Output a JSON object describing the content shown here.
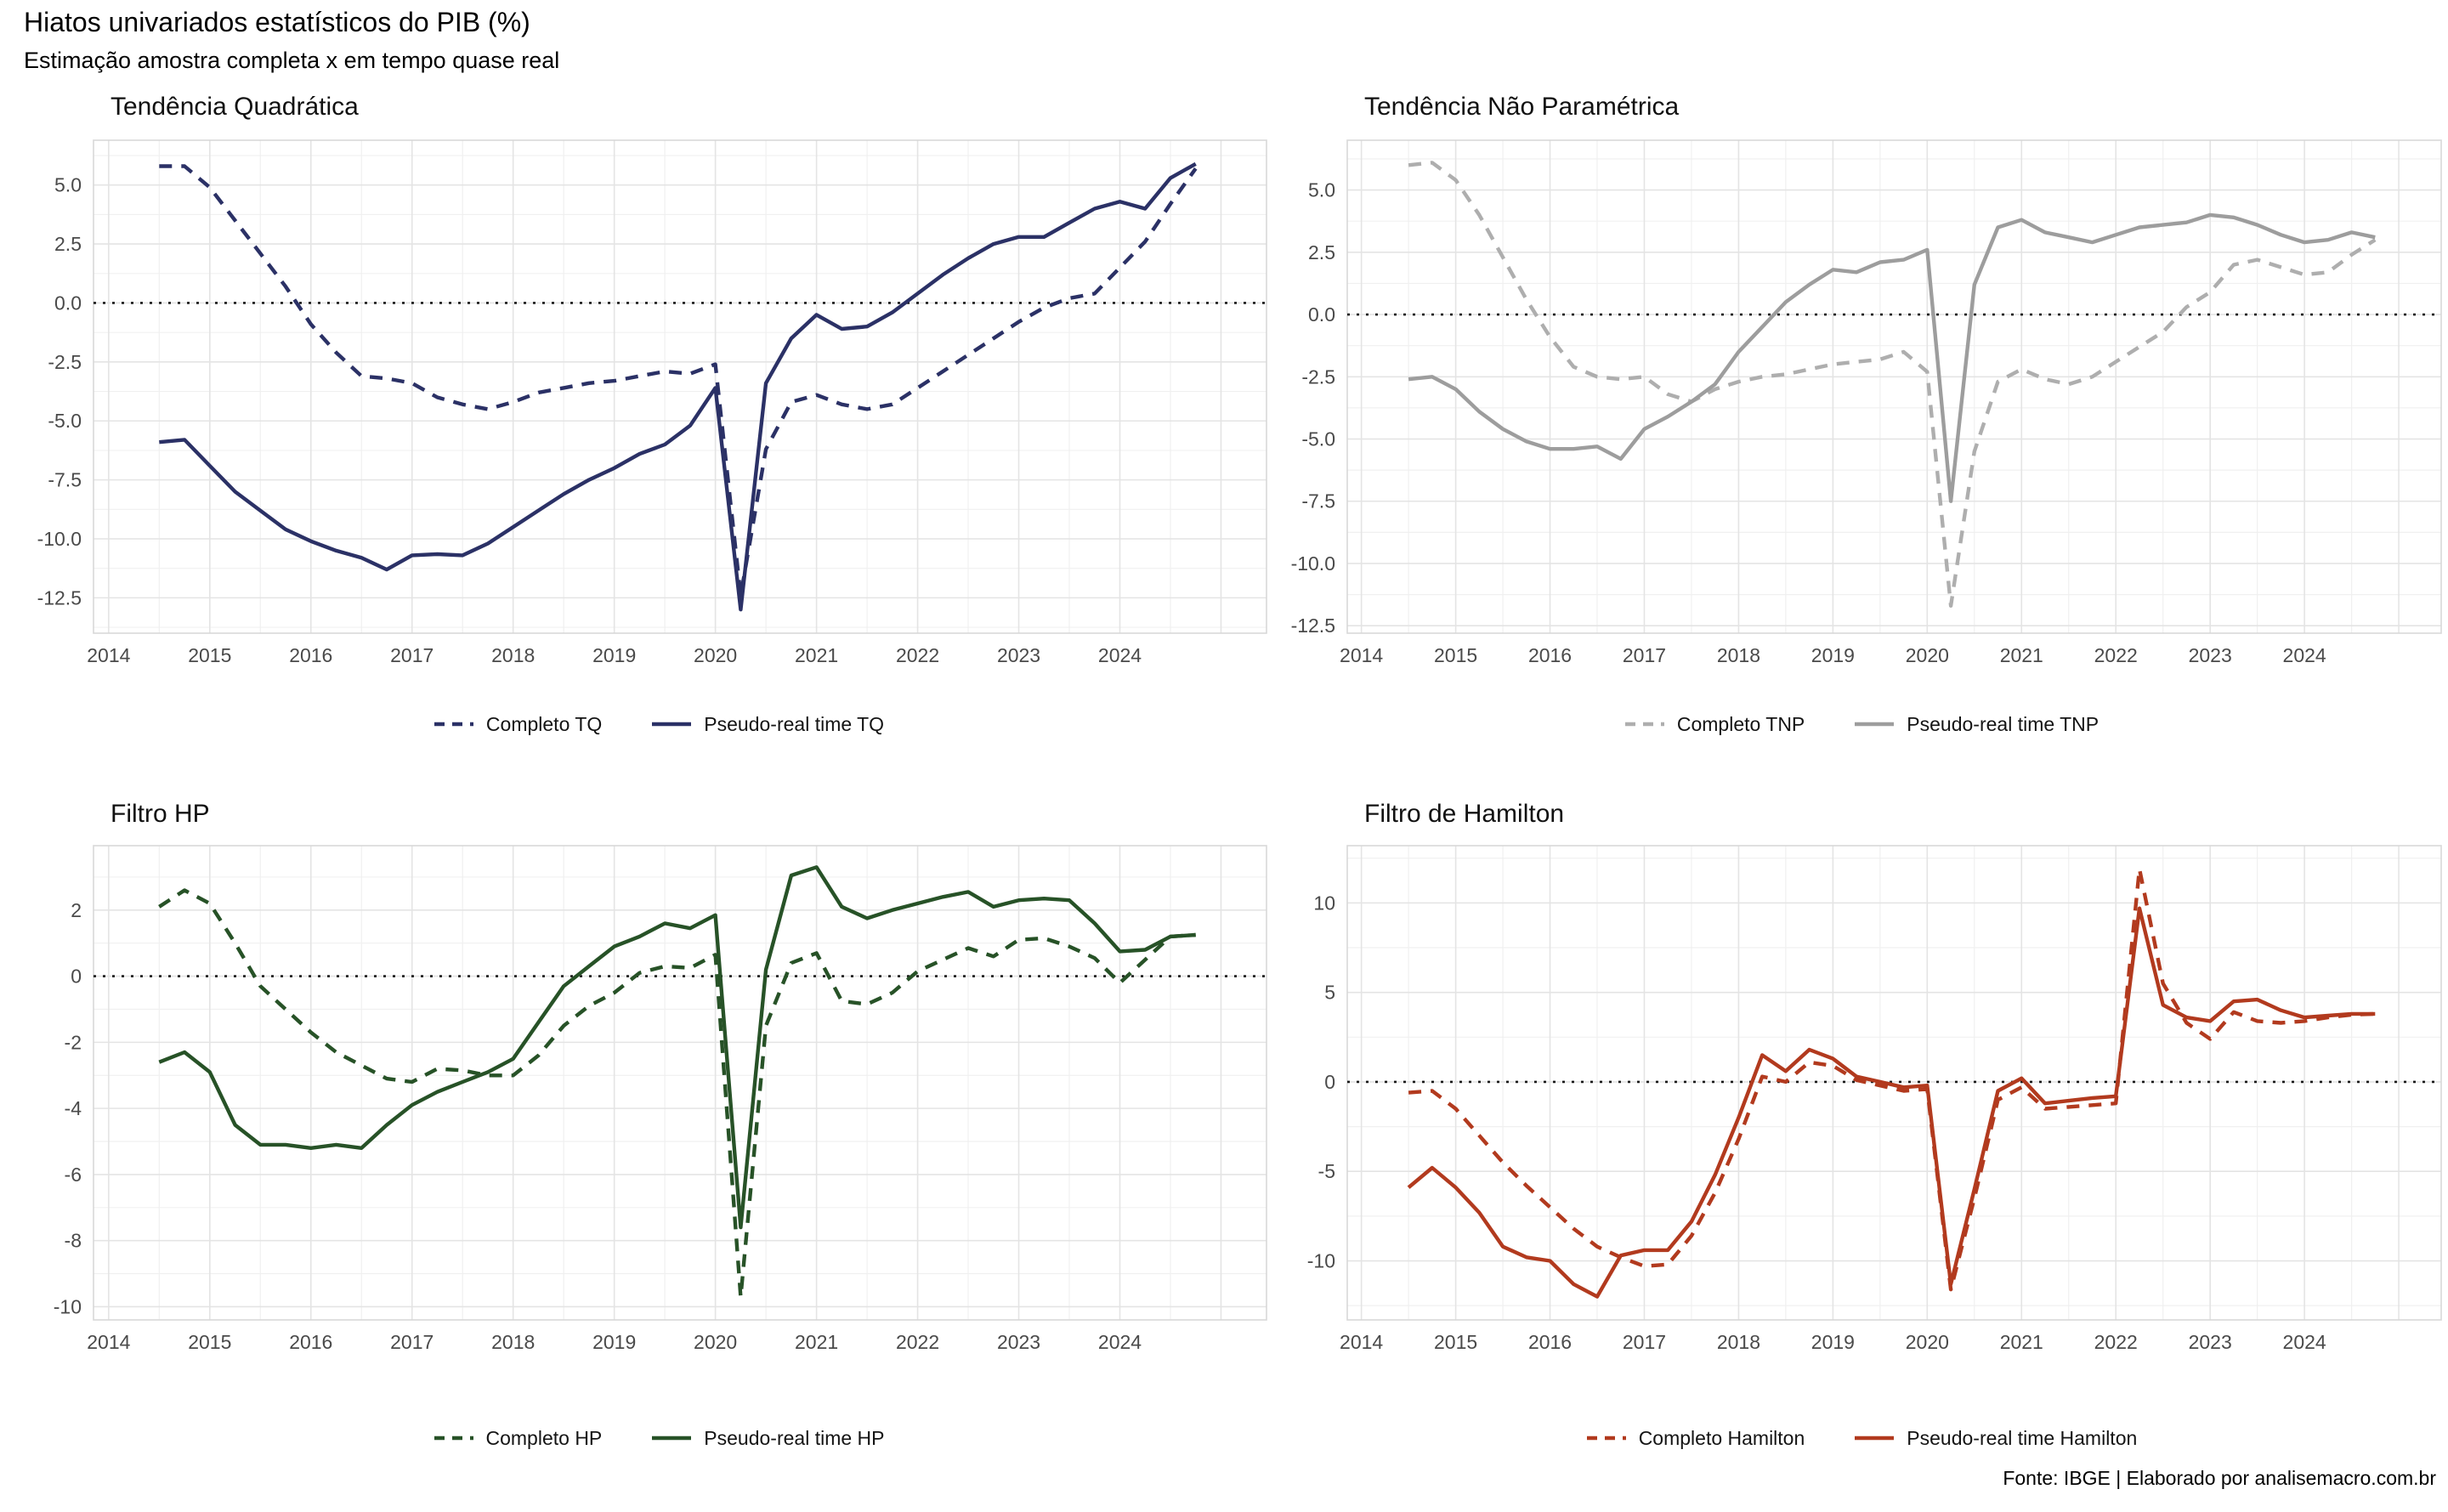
{
  "header": {
    "title": "Hiatos univariados estatísticos do PIB (%)",
    "subtitle": "Estimação amostra completa x em tempo quase real"
  },
  "footer": {
    "text": "Fonte: IBGE | Elaborado por analisemacro.com.br"
  },
  "chart_data": [
    {
      "type": "line",
      "title": "Tendência Quadrática",
      "x_start": 2014.5,
      "x_step": 0.25,
      "xlim": [
        2013.85,
        2025.45
      ],
      "ylim": [
        -14.0,
        6.9
      ],
      "grid": "on",
      "legend_position": "bottom",
      "zero_line": true,
      "xticks": {
        "values": [
          2014,
          2015,
          2016,
          2017,
          2018,
          2019,
          2020,
          2021,
          2022,
          2023,
          2024,
          2025
        ],
        "labels": [
          "2014",
          "2015",
          "2016",
          "2017",
          "2018",
          "2019",
          "2020",
          "2021",
          "2022",
          "2023",
          "2024",
          ""
        ]
      },
      "x_minor": [
        2014.5,
        2015.5,
        2016.5,
        2017.5,
        2018.5,
        2019.5,
        2020.5,
        2021.5,
        2022.5,
        2023.5,
        2024.5
      ],
      "yticks": {
        "values": [
          5.0,
          2.5,
          0.0,
          -2.5,
          -5.0,
          -7.5,
          -10.0,
          -12.5
        ],
        "labels": [
          "5.0",
          "2.5",
          "0.0",
          "-2.5",
          "-5.0",
          "-7.5",
          "-10.0",
          "-12.5"
        ]
      },
      "y_minor": [
        6.25,
        3.75,
        1.25,
        -1.25,
        -3.75,
        -6.25,
        -8.75,
        -11.25,
        -13.75
      ],
      "series": [
        {
          "name": "Completo TQ",
          "style": "dashed",
          "color": "#2b3166",
          "values": [
            5.8,
            5.8,
            4.9,
            3.5,
            2.1,
            0.7,
            -0.9,
            -2.1,
            -3.1,
            -3.2,
            -3.4,
            -4.0,
            -4.3,
            -4.5,
            -4.2,
            -3.8,
            -3.6,
            -3.4,
            -3.3,
            -3.1,
            -2.9,
            -3.0,
            -2.6,
            -12.4,
            -6.2,
            -4.2,
            -3.9,
            -4.3,
            -4.5,
            -4.3,
            -3.6,
            -2.9,
            -2.2,
            -1.5,
            -0.8,
            -0.2,
            0.2,
            0.4,
            1.5,
            2.6,
            4.2,
            5.7
          ]
        },
        {
          "name": "Pseudo-real time TQ",
          "style": "solid",
          "color": "#2b3166",
          "values": [
            -5.9,
            -5.8,
            -6.9,
            -8.0,
            -8.8,
            -9.6,
            -10.1,
            -10.5,
            -10.8,
            -11.3,
            -10.7,
            -10.65,
            -10.7,
            -10.2,
            -9.5,
            -8.8,
            -8.1,
            -7.5,
            -7.0,
            -6.4,
            -6.0,
            -5.2,
            -3.6,
            -13.0,
            -3.4,
            -1.5,
            -0.5,
            -1.1,
            -1.0,
            -0.4,
            0.4,
            1.2,
            1.9,
            2.5,
            2.8,
            2.8,
            3.4,
            4.0,
            4.3,
            4.0,
            5.3,
            5.9
          ]
        }
      ]
    },
    {
      "type": "line",
      "title": "Tendência Não Paramétrica",
      "x_start": 2014.5,
      "x_step": 0.25,
      "xlim": [
        2013.85,
        2025.45
      ],
      "ylim": [
        -12.8,
        7.0
      ],
      "grid": "on",
      "legend_position": "bottom",
      "zero_line": true,
      "xticks": {
        "values": [
          2014,
          2015,
          2016,
          2017,
          2018,
          2019,
          2020,
          2021,
          2022,
          2023,
          2024,
          2025
        ],
        "labels": [
          "2014",
          "2015",
          "2016",
          "2017",
          "2018",
          "2019",
          "2020",
          "2021",
          "2022",
          "2023",
          "2024",
          ""
        ]
      },
      "x_minor": [
        2014.5,
        2015.5,
        2016.5,
        2017.5,
        2018.5,
        2019.5,
        2020.5,
        2021.5,
        2022.5,
        2023.5,
        2024.5
      ],
      "yticks": {
        "values": [
          5.0,
          2.5,
          0.0,
          -2.5,
          -5.0,
          -7.5,
          -10.0,
          -12.5
        ],
        "labels": [
          "5.0",
          "2.5",
          "0.0",
          "-2.5",
          "-5.0",
          "-7.5",
          "-10.0",
          "-12.5"
        ]
      },
      "y_minor": [
        6.25,
        3.75,
        1.25,
        -1.25,
        -3.75,
        -6.25,
        -8.75,
        -11.25
      ],
      "series": [
        {
          "name": "Completo TNP",
          "style": "dashed",
          "color": "#aeaeae",
          "values": [
            6.0,
            6.1,
            5.4,
            4.0,
            2.3,
            0.6,
            -0.9,
            -2.1,
            -2.5,
            -2.6,
            -2.5,
            -3.2,
            -3.5,
            -3.0,
            -2.7,
            -2.5,
            -2.4,
            -2.2,
            -2.0,
            -1.9,
            -1.8,
            -1.5,
            -2.3,
            -11.7,
            -5.5,
            -2.7,
            -2.2,
            -2.6,
            -2.8,
            -2.5,
            -1.9,
            -1.3,
            -0.7,
            0.3,
            0.9,
            2.0,
            2.2,
            1.9,
            1.6,
            1.7,
            2.4,
            3.0
          ]
        },
        {
          "name": "Pseudo-real time TNP",
          "style": "solid",
          "color": "#9d9d9d",
          "values": [
            -2.6,
            -2.5,
            -3.0,
            -3.9,
            -4.6,
            -5.1,
            -5.4,
            -5.4,
            -5.3,
            -5.8,
            -4.6,
            -4.1,
            -3.5,
            -2.8,
            -1.5,
            -0.5,
            0.5,
            1.2,
            1.8,
            1.7,
            2.1,
            2.2,
            2.6,
            -7.5,
            1.2,
            3.5,
            3.8,
            3.3,
            3.1,
            2.9,
            3.2,
            3.5,
            3.6,
            3.7,
            4.0,
            3.9,
            3.6,
            3.2,
            2.9,
            3.0,
            3.3,
            3.1
          ]
        }
      ]
    },
    {
      "type": "line",
      "title": "Filtro HP",
      "x_start": 2014.5,
      "x_step": 0.25,
      "xlim": [
        2013.85,
        2025.45
      ],
      "ylim": [
        -10.4,
        3.95
      ],
      "grid": "on",
      "legend_position": "bottom",
      "zero_line": true,
      "xticks": {
        "values": [
          2014,
          2015,
          2016,
          2017,
          2018,
          2019,
          2020,
          2021,
          2022,
          2023,
          2024,
          2025
        ],
        "labels": [
          "2014",
          "2015",
          "2016",
          "2017",
          "2018",
          "2019",
          "2020",
          "2021",
          "2022",
          "2023",
          "2024",
          ""
        ]
      },
      "x_minor": [
        2014.5,
        2015.5,
        2016.5,
        2017.5,
        2018.5,
        2019.5,
        2020.5,
        2021.5,
        2022.5,
        2023.5,
        2024.5
      ],
      "yticks": {
        "values": [
          2,
          0,
          -2,
          -4,
          -6,
          -8,
          -10
        ],
        "labels": [
          "2",
          "0",
          "-2",
          "-4",
          "-6",
          "-8",
          "-10"
        ]
      },
      "y_minor": [
        3,
        1,
        -1,
        -3,
        -5,
        -7,
        -9
      ],
      "series": [
        {
          "name": "Completo HP",
          "style": "dashed",
          "color": "#275227",
          "values": [
            2.1,
            2.6,
            2.2,
            1.0,
            -0.3,
            -1.0,
            -1.7,
            -2.3,
            -2.7,
            -3.1,
            -3.2,
            -2.8,
            -2.85,
            -3.0,
            -3.0,
            -2.4,
            -1.5,
            -0.9,
            -0.5,
            0.1,
            0.3,
            0.25,
            0.65,
            -9.7,
            -1.5,
            0.4,
            0.7,
            -0.75,
            -0.85,
            -0.5,
            0.15,
            0.5,
            0.85,
            0.6,
            1.1,
            1.15,
            0.9,
            0.55,
            -0.2,
            0.5,
            1.2,
            1.25
          ]
        },
        {
          "name": "Pseudo-real time HP",
          "style": "solid",
          "color": "#275227",
          "values": [
            -2.6,
            -2.3,
            -2.9,
            -4.5,
            -5.1,
            -5.1,
            -5.2,
            -5.1,
            -5.2,
            -4.5,
            -3.9,
            -3.5,
            -3.2,
            -2.9,
            -2.5,
            -1.4,
            -0.3,
            0.3,
            0.9,
            1.2,
            1.6,
            1.45,
            1.85,
            -7.6,
            0.2,
            3.05,
            3.3,
            2.1,
            1.75,
            2.0,
            2.2,
            2.4,
            2.55,
            2.1,
            2.3,
            2.35,
            2.3,
            1.6,
            0.75,
            0.8,
            1.2,
            1.25
          ]
        }
      ]
    },
    {
      "type": "line",
      "title": "Filtro de Hamilton",
      "x_start": 2014.5,
      "x_step": 0.25,
      "xlim": [
        2013.85,
        2025.45
      ],
      "ylim": [
        -13.3,
        13.2
      ],
      "grid": "on",
      "legend_position": "bottom",
      "zero_line": true,
      "xticks": {
        "values": [
          2014,
          2015,
          2016,
          2017,
          2018,
          2019,
          2020,
          2021,
          2022,
          2023,
          2024,
          2025
        ],
        "labels": [
          "2014",
          "2015",
          "2016",
          "2017",
          "2018",
          "2019",
          "2020",
          "2021",
          "2022",
          "2023",
          "2024",
          ""
        ]
      },
      "x_minor": [
        2014.5,
        2015.5,
        2016.5,
        2017.5,
        2018.5,
        2019.5,
        2020.5,
        2021.5,
        2022.5,
        2023.5,
        2024.5
      ],
      "yticks": {
        "values": [
          10,
          5,
          0,
          -5,
          -10
        ],
        "labels": [
          "10",
          "5",
          "0",
          "-5",
          "-10"
        ]
      },
      "y_minor": [
        12.5,
        7.5,
        2.5,
        -2.5,
        -7.5,
        -12.5
      ],
      "series": [
        {
          "name": "Completo Hamilton",
          "style": "dashed",
          "color": "#b23a1e",
          "values": [
            -0.6,
            -0.5,
            -1.5,
            -3.0,
            -4.5,
            -5.8,
            -7.0,
            -8.2,
            -9.2,
            -9.8,
            -10.3,
            -10.2,
            -8.6,
            -6.2,
            -3.2,
            0.3,
            0.0,
            1.1,
            0.9,
            0.1,
            -0.2,
            -0.5,
            -0.4,
            -11.6,
            -6.5,
            -1.0,
            -0.3,
            -1.5,
            -1.4,
            -1.3,
            -1.2,
            11.9,
            5.5,
            3.3,
            2.4,
            3.9,
            3.4,
            3.3,
            3.4,
            3.6,
            3.75,
            3.8
          ]
        },
        {
          "name": "Pseudo-real time Hamilton",
          "style": "solid",
          "color": "#b23a1e",
          "values": [
            -5.9,
            -4.8,
            -5.9,
            -7.3,
            -9.2,
            -9.8,
            -10.0,
            -11.3,
            -12.0,
            -9.7,
            -9.4,
            -9.4,
            -7.8,
            -5.2,
            -2.0,
            1.5,
            0.6,
            1.8,
            1.3,
            0.3,
            0.0,
            -0.3,
            -0.2,
            -11.3,
            -6.0,
            -0.5,
            0.2,
            -1.2,
            -1.05,
            -0.9,
            -0.8,
            9.7,
            4.3,
            3.6,
            3.4,
            4.5,
            4.6,
            4.0,
            3.6,
            3.7,
            3.8,
            3.8
          ]
        }
      ]
    }
  ],
  "style": {
    "grid_major_color": "#e4e4e4",
    "grid_minor_color": "#f0f0f0",
    "panel_border_color": "#d8d8d8",
    "axis_text_color": "#4a4a4a",
    "zero_line_color": "#1a1a1a"
  }
}
